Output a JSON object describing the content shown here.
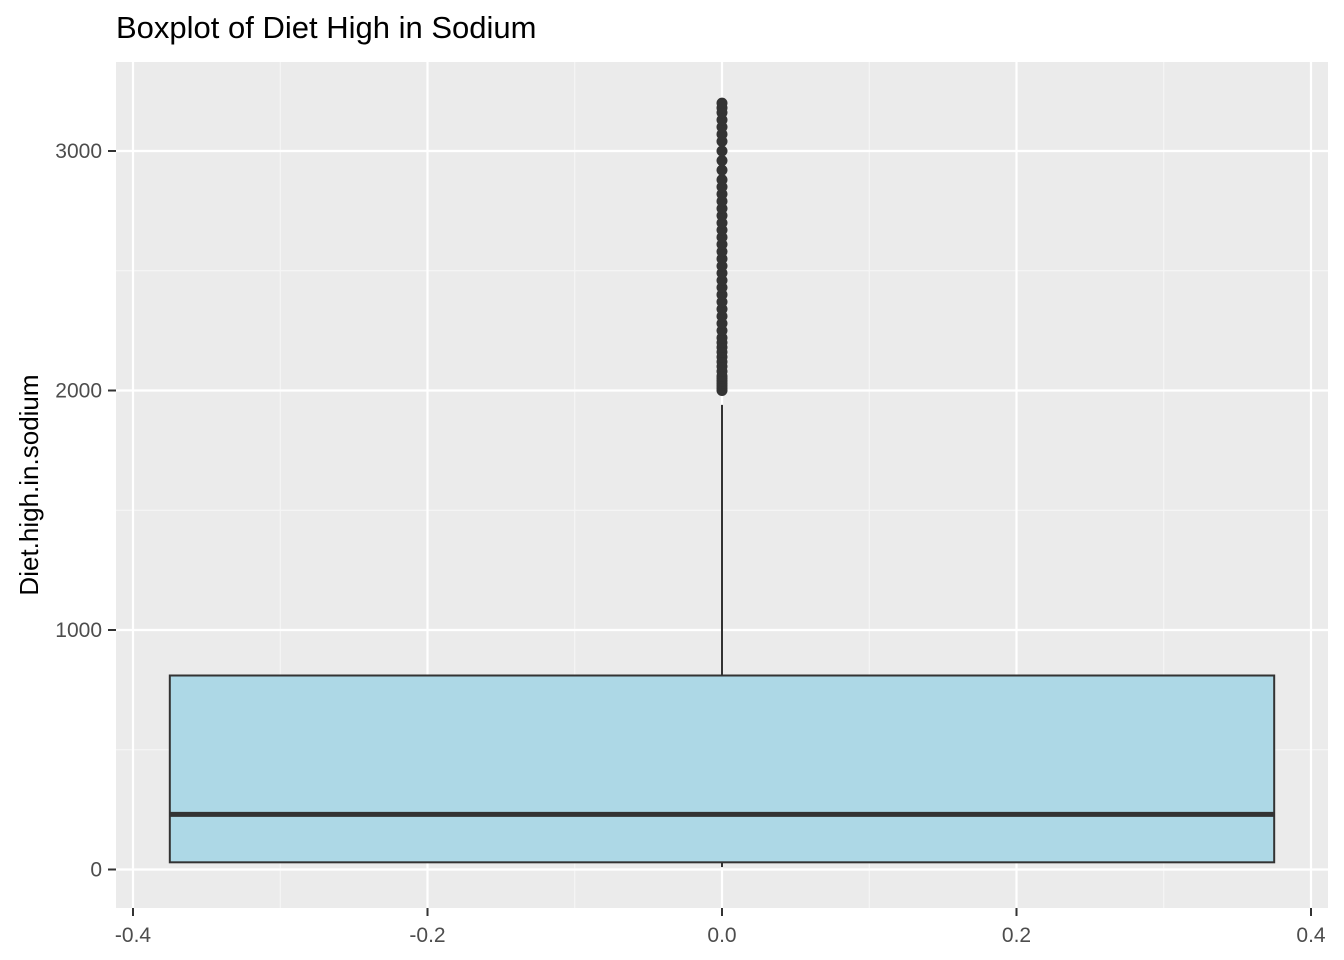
{
  "chart_data": {
    "type": "boxplot",
    "title": "Boxplot of Diet High in Sodium",
    "xlabel": "",
    "ylabel": "Diet.high.in.sodium",
    "xlim": [
      -0.4,
      0.4
    ],
    "ylim": [
      0,
      3000
    ],
    "x_ticks": [
      -0.4,
      -0.2,
      0.0,
      0.2,
      0.4
    ],
    "x_tick_labels": [
      "-0.4",
      "-0.2",
      "0.0",
      "0.2",
      "0.4"
    ],
    "y_ticks": [
      0,
      1000,
      2000,
      3000
    ],
    "y_tick_labels": [
      "0",
      "1000",
      "2000",
      "3000"
    ],
    "grid": true,
    "box": {
      "x_center": 0.0,
      "x_min": -0.375,
      "x_max": 0.375,
      "lower_whisker": 10,
      "q1": 30,
      "median": 230,
      "q3": 810,
      "upper_whisker": 1940
    },
    "outliers": [
      2000,
      2010,
      2020,
      2030,
      2040,
      2050,
      2060,
      2080,
      2100,
      2120,
      2140,
      2160,
      2180,
      2200,
      2220,
      2250,
      2280,
      2310,
      2340,
      2370,
      2400,
      2430,
      2460,
      2490,
      2520,
      2550,
      2580,
      2610,
      2640,
      2670,
      2700,
      2730,
      2760,
      2790,
      2820,
      2850,
      2880,
      2920,
      2960,
      3000,
      3040,
      3070,
      3100,
      3130,
      3160,
      3180,
      3200
    ],
    "colors": {
      "panel_background": "#ebebeb",
      "grid_major": "#ffffff",
      "grid_minor": "#f5f5f5",
      "box_fill": "#add8e6",
      "box_outline": "#333333",
      "median_line": "#333333",
      "outlier": "#333333",
      "tick_label": "#4d4d4d",
      "tick_mark": "#333333"
    }
  }
}
